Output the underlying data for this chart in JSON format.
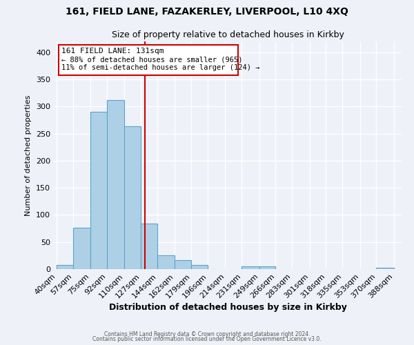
{
  "title1": "161, FIELD LANE, FAZAKERLEY, LIVERPOOL, L10 4XQ",
  "title2": "Size of property relative to detached houses in Kirkby",
  "xlabel": "Distribution of detached houses by size in Kirkby",
  "ylabel": "Number of detached properties",
  "bin_edges": [
    40,
    57,
    75,
    92,
    110,
    127,
    144,
    162,
    179,
    196,
    214,
    231,
    249,
    266,
    283,
    301,
    318,
    335,
    353,
    370,
    388
  ],
  "bin_labels": [
    "40sqm",
    "57sqm",
    "75sqm",
    "92sqm",
    "110sqm",
    "127sqm",
    "144sqm",
    "162sqm",
    "179sqm",
    "196sqm",
    "214sqm",
    "231sqm",
    "249sqm",
    "266sqm",
    "283sqm",
    "301sqm",
    "318sqm",
    "335sqm",
    "353sqm",
    "370sqm",
    "388sqm"
  ],
  "counts": [
    8,
    76,
    290,
    312,
    263,
    84,
    26,
    16,
    8,
    0,
    0,
    5,
    5,
    0,
    0,
    0,
    0,
    0,
    0,
    2
  ],
  "bar_color": "#aed0e6",
  "bar_edge_color": "#5ba3c9",
  "vline_x": 131,
  "vline_color": "#cc0000",
  "annotation_text1": "161 FIELD LANE: 131sqm",
  "annotation_text2": "← 88% of detached houses are smaller (965)",
  "annotation_text3": "11% of semi-detached houses are larger (124) →",
  "annotation_box_color": "#ffffff",
  "annotation_box_edge": "#cc0000",
  "ylim": [
    0,
    420
  ],
  "yticks": [
    0,
    50,
    100,
    150,
    200,
    250,
    300,
    350,
    400
  ],
  "footer1": "Contains HM Land Registry data © Crown copyright and database right 2024.",
  "footer2": "Contains public sector information licensed under the Open Government Licence v3.0.",
  "background_color": "#eef2f8"
}
